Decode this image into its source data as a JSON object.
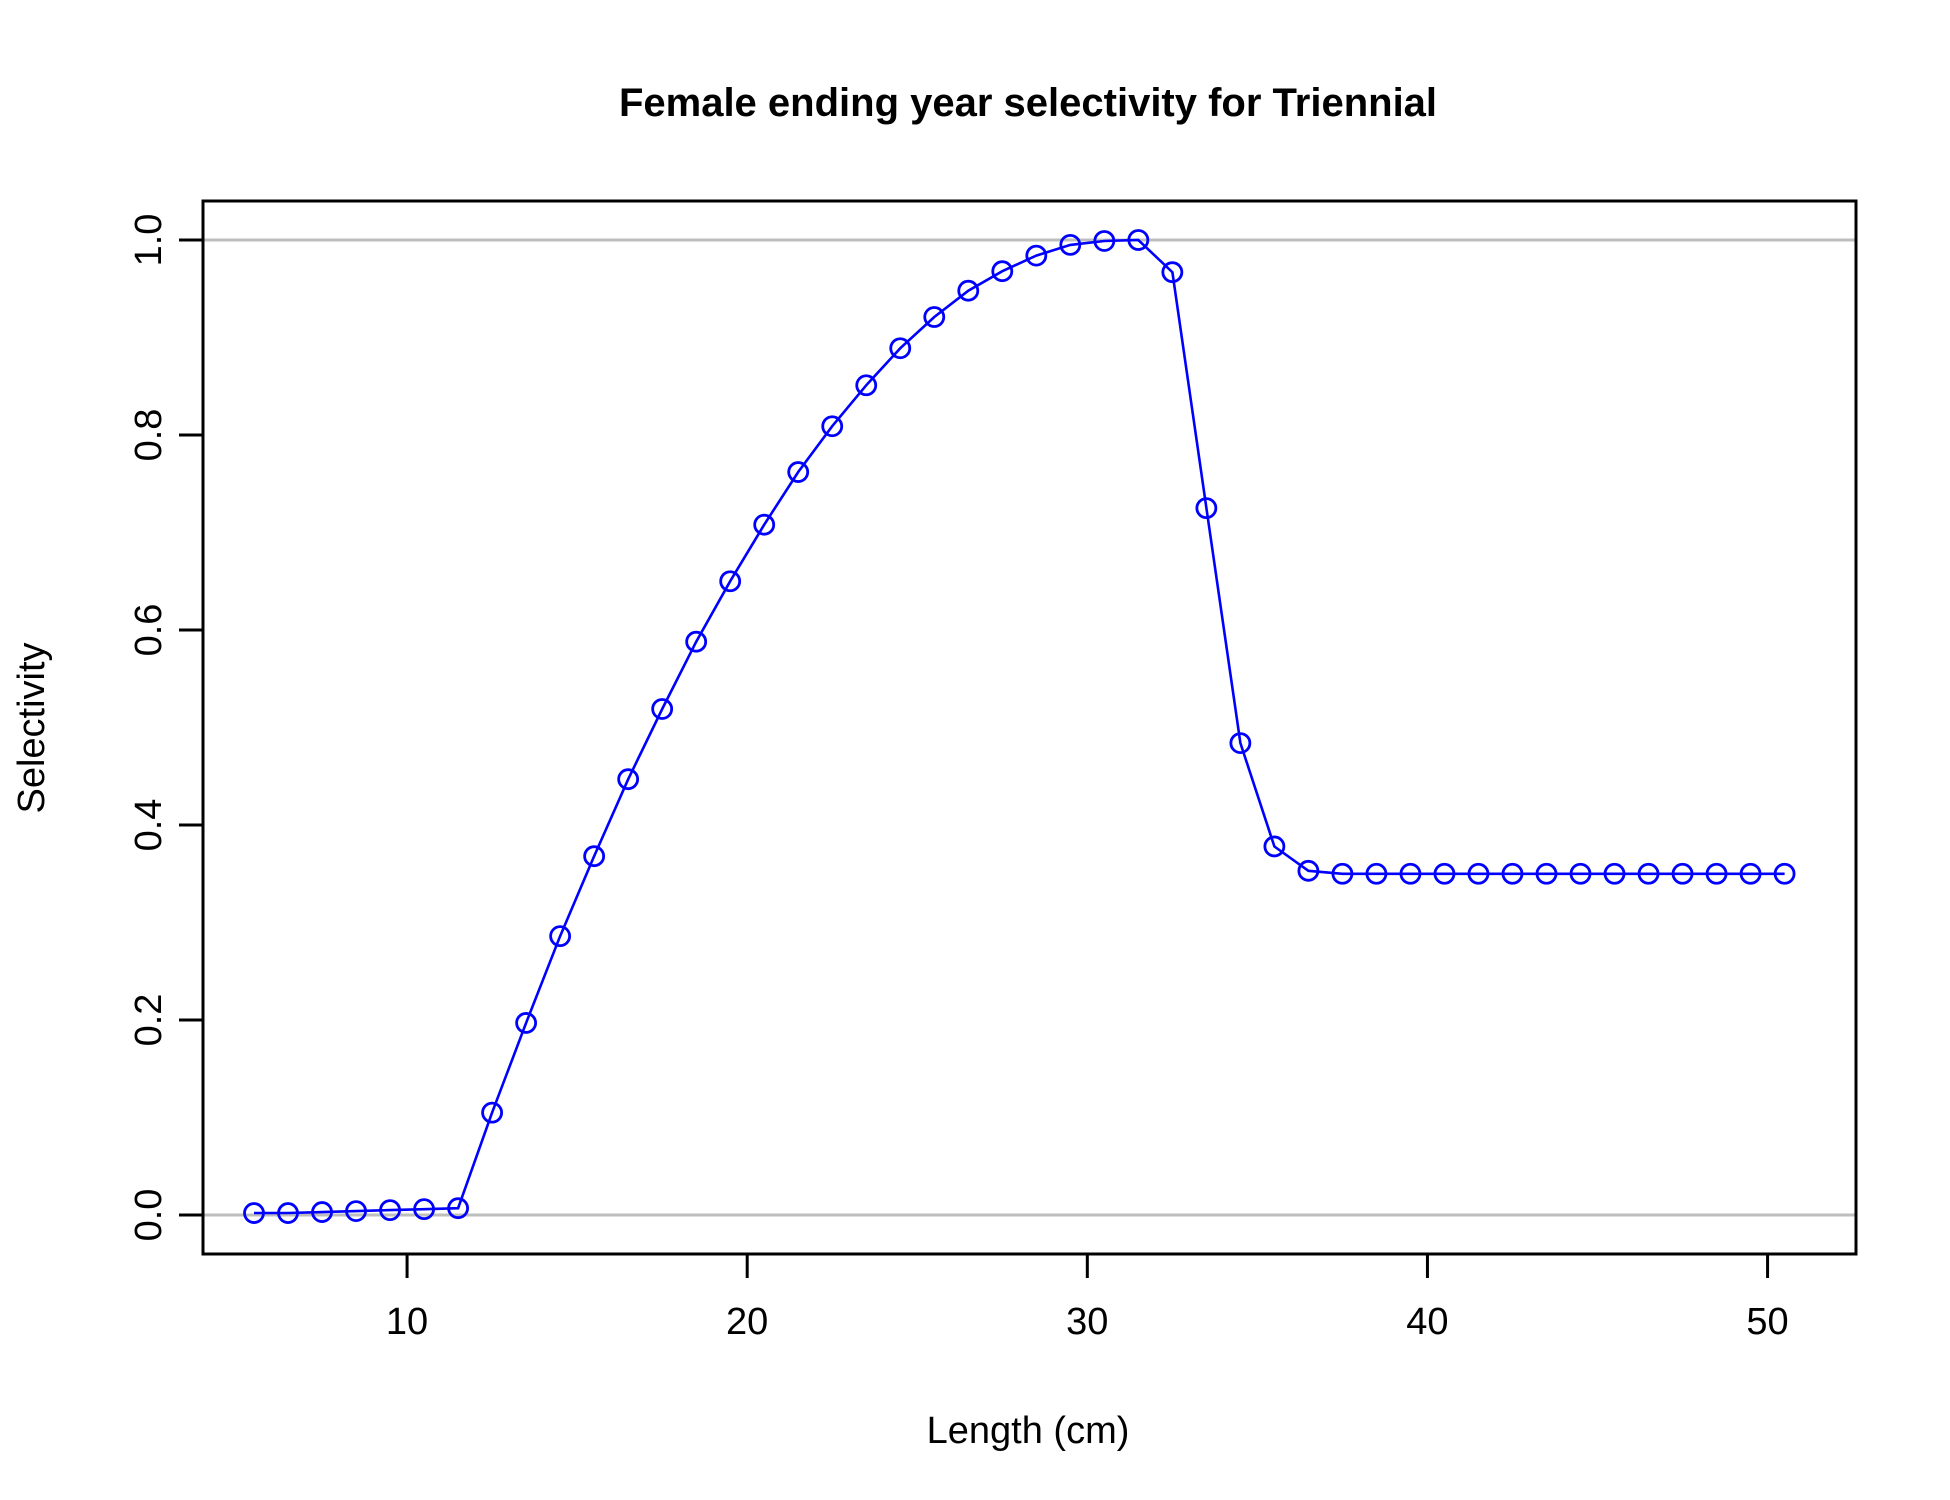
{
  "chart_data": {
    "type": "line",
    "title": "Female ending year selectivity for Triennial",
    "xlabel": "Length (cm)",
    "ylabel": "Selectivity",
    "xlim": [
      4,
      52.6
    ],
    "ylim": [
      -0.04,
      1.04
    ],
    "x_ticks": [
      10,
      20,
      30,
      40,
      50
    ],
    "x_tick_labels": [
      "10",
      "20",
      "30",
      "40",
      "50"
    ],
    "y_ticks": [
      0,
      0.2,
      0.4,
      0.6,
      0.8,
      1.0
    ],
    "y_tick_labels": [
      "0.0",
      "0.2",
      "0.4",
      "0.6",
      "0.8",
      "1.0"
    ],
    "reference_lines": [
      0,
      1
    ],
    "grid": false,
    "legend": "none",
    "colors": {
      "series": "#0000ff",
      "reference": "#bebebe",
      "axis": "#000000"
    },
    "markers": "open-circle",
    "series": [
      {
        "x": [
          5.5,
          6.5,
          7.5,
          8.5,
          9.5,
          10.5,
          11.5,
          12.5,
          13.5,
          14.5,
          15.5,
          16.5,
          17.5,
          18.5,
          19.5,
          20.5,
          21.5,
          22.5,
          23.5,
          24.5,
          25.5,
          26.5,
          27.5,
          28.5,
          29.5,
          30.5,
          31.5,
          32.5,
          33.5,
          34.5,
          35.5,
          36.5,
          37.5,
          38.5,
          39.5,
          40.5,
          41.5,
          42.5,
          43.5,
          44.5,
          45.5,
          46.5,
          47.5,
          48.5,
          49.5,
          50.5
        ],
        "values": [
          0.002,
          0.002,
          0.003,
          0.004,
          0.005,
          0.006,
          0.007,
          0.105,
          0.197,
          0.286,
          0.368,
          0.447,
          0.519,
          0.588,
          0.65,
          0.708,
          0.762,
          0.809,
          0.851,
          0.889,
          0.921,
          0.948,
          0.968,
          0.984,
          0.995,
          0.999,
          1.0,
          0.967,
          0.725,
          0.484,
          0.378,
          0.353,
          0.35,
          0.35,
          0.35,
          0.35,
          0.35,
          0.35,
          0.35,
          0.35,
          0.35,
          0.35,
          0.35,
          0.35,
          0.35,
          0.35
        ]
      }
    ]
  }
}
